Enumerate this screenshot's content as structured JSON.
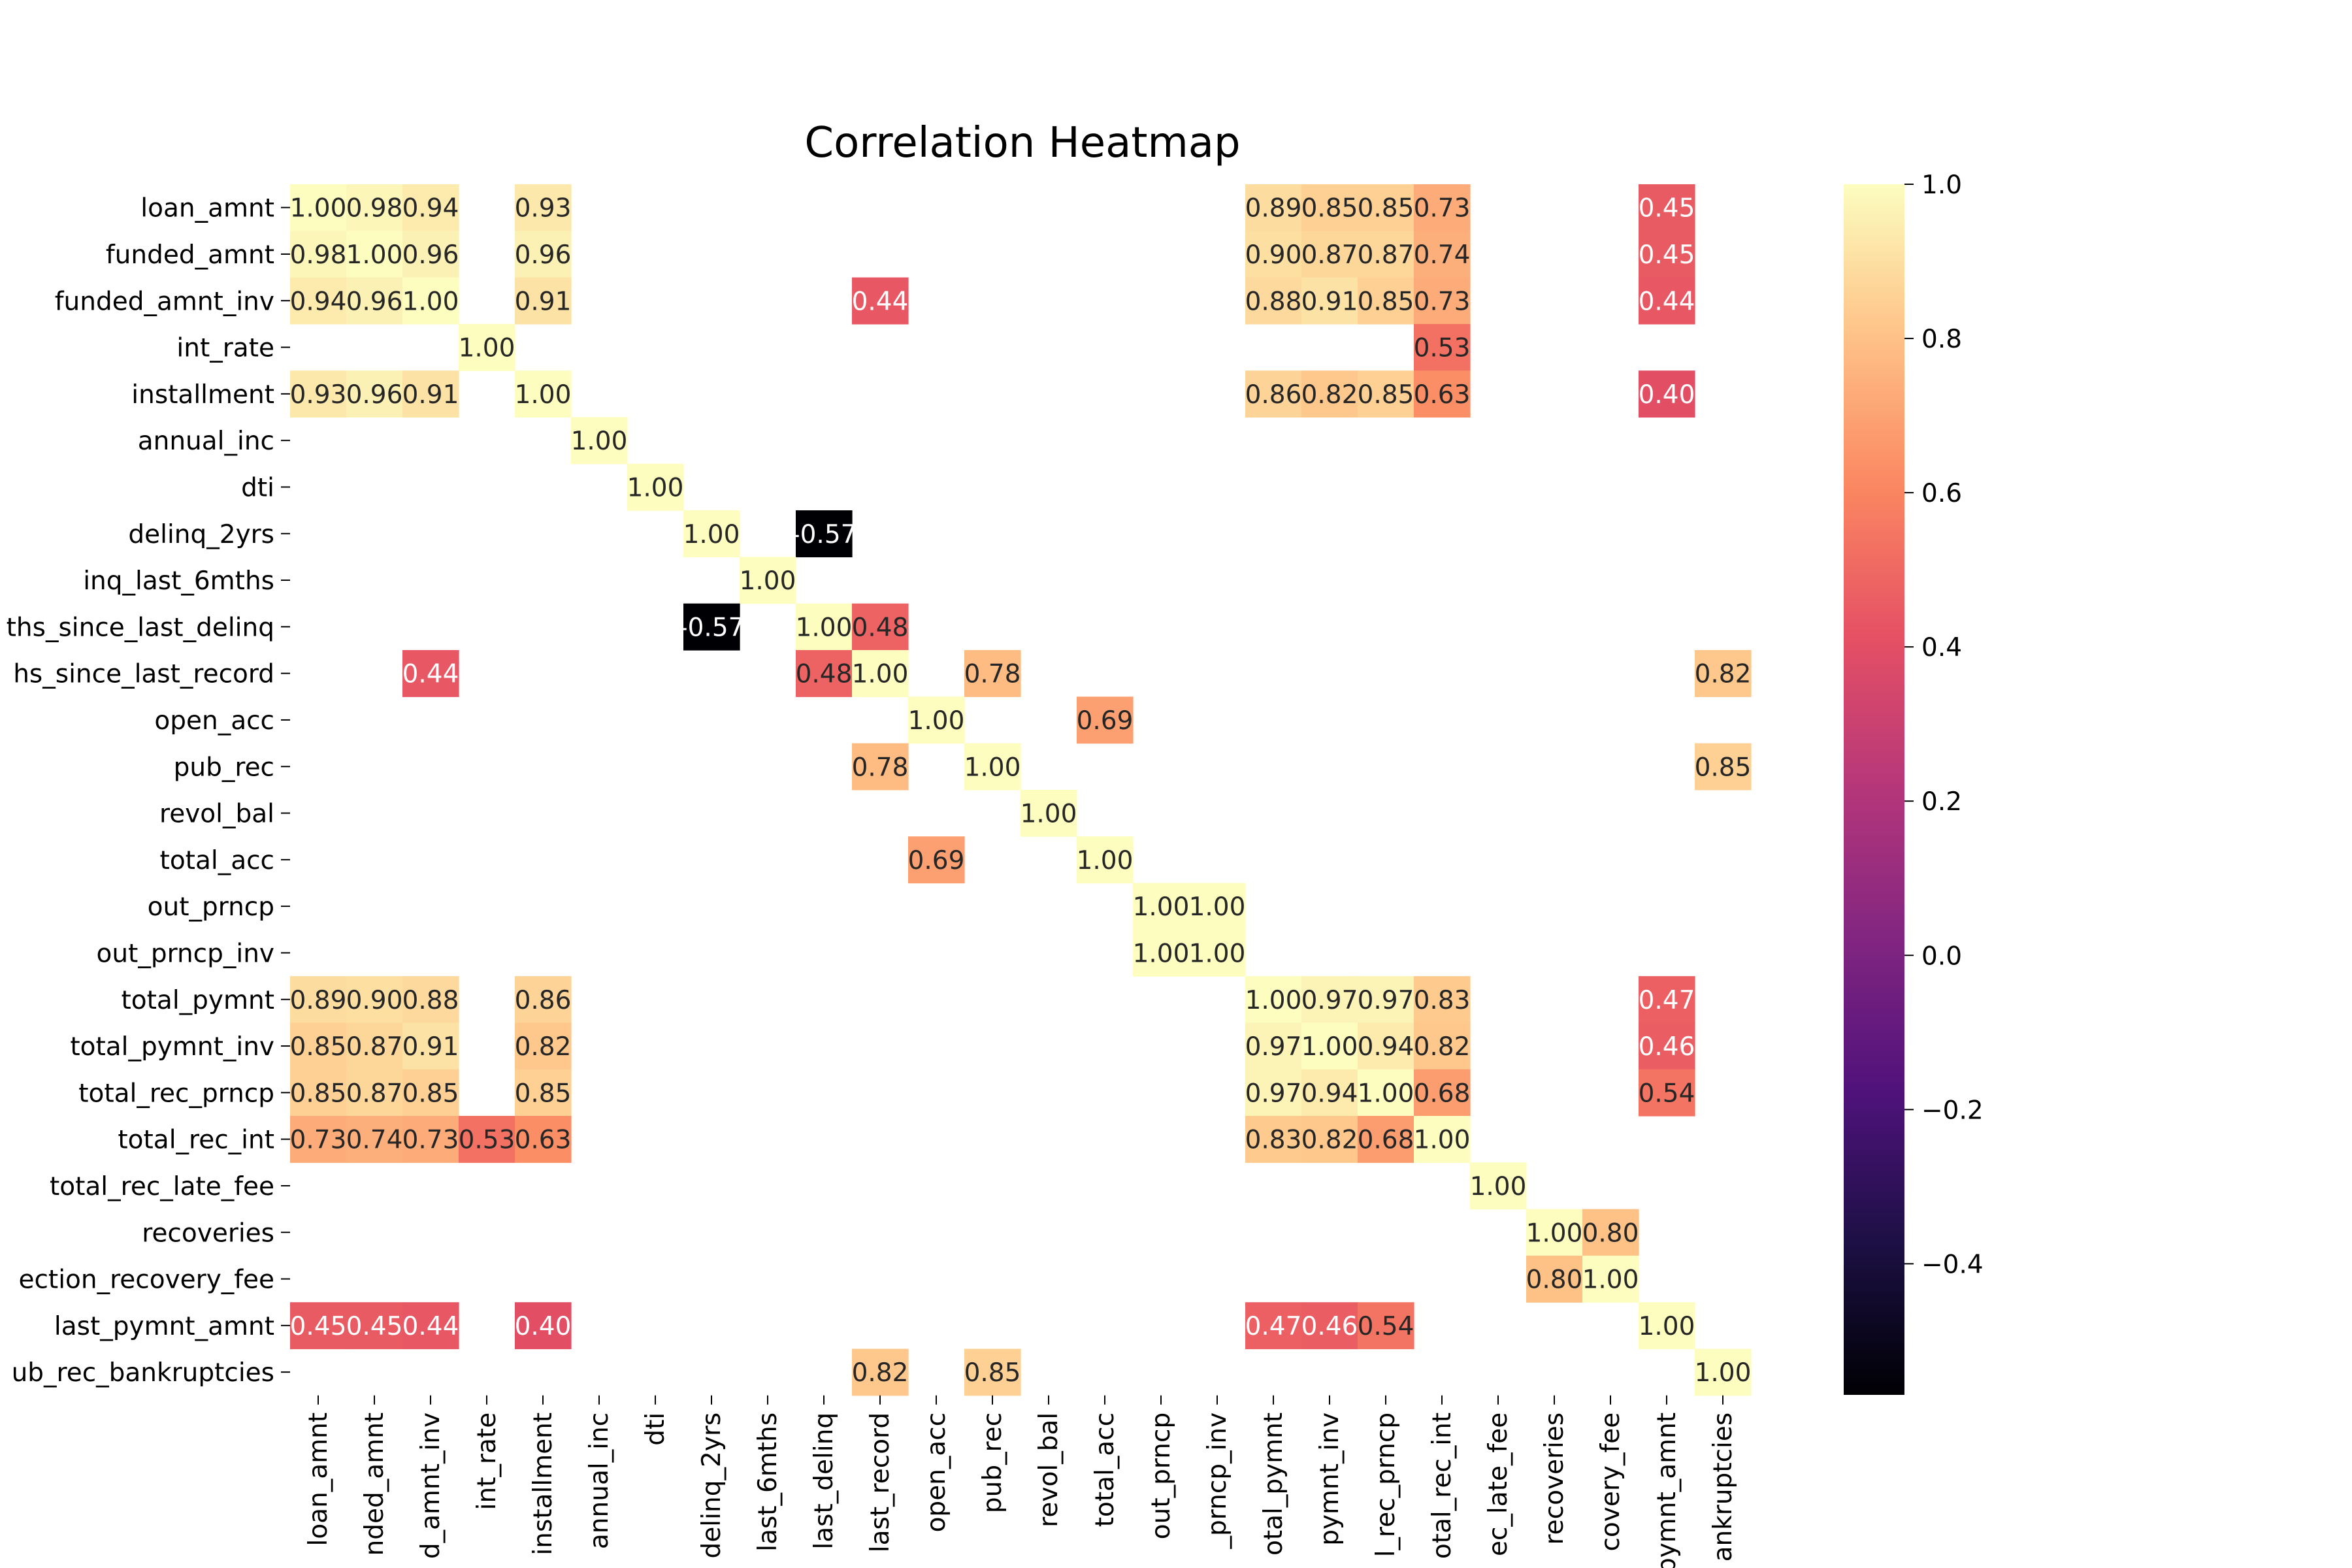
{
  "chart_data": {
    "type": "heatmap",
    "title": "Correlation Heatmap",
    "xlabel": "",
    "ylabel": "",
    "labels": [
      "loan_amnt",
      "funded_amnt",
      "funded_amnt_inv",
      "int_rate",
      "installment",
      "annual_inc",
      "dti",
      "delinq_2yrs",
      "inq_last_6mths",
      "mths_since_last_delinq",
      "mths_since_last_record",
      "open_acc",
      "pub_rec",
      "revol_bal",
      "total_acc",
      "out_prncp",
      "out_prncp_inv",
      "total_pymnt",
      "total_pymnt_inv",
      "total_rec_prncp",
      "total_rec_int",
      "total_rec_late_fee",
      "recoveries",
      "collection_recovery_fee",
      "last_pymnt_amnt",
      "pub_rec_bankruptcies"
    ],
    "y_tick_labels": [
      "loan_amnt",
      "funded_amnt",
      "funded_amnt_inv",
      "int_rate",
      "installment",
      "annual_inc",
      "dti",
      "delinq_2yrs",
      "inq_last_6mths",
      "ths_since_last_delinq",
      "hs_since_last_record",
      "open_acc",
      "pub_rec",
      "revol_bal",
      "total_acc",
      "out_prncp",
      "out_prncp_inv",
      "total_pymnt",
      "total_pymnt_inv",
      "total_rec_prncp",
      "total_rec_int",
      "total_rec_late_fee",
      "recoveries",
      "ection_recovery_fee",
      "last_pymnt_amnt",
      "ub_rec_bankruptcies"
    ],
    "x_tick_labels": [
      "loan_amnt",
      "nded_amnt",
      "d_amnt_inv",
      "int_rate",
      "installment",
      "annual_inc",
      "dti",
      "delinq_2yrs",
      "last_6mths",
      "last_delinq",
      "last_record",
      "open_acc",
      "pub_rec",
      "revol_bal",
      "total_acc",
      "out_prncp",
      "_prncp_inv",
      "otal_pymnt",
      "pymnt_inv",
      "l_rec_prncp",
      "otal_rec_int",
      "ec_late_fee",
      "recoveries",
      "covery_fee",
      "pymnt_amnt",
      "ankruptcies"
    ],
    "cells": [
      [
        0,
        0,
        1.0
      ],
      [
        0,
        1,
        0.98
      ],
      [
        0,
        2,
        0.94
      ],
      [
        0,
        4,
        0.93
      ],
      [
        0,
        17,
        0.89
      ],
      [
        0,
        18,
        0.85
      ],
      [
        0,
        19,
        0.85
      ],
      [
        0,
        20,
        0.73
      ],
      [
        0,
        24,
        0.45
      ],
      [
        1,
        0,
        0.98
      ],
      [
        1,
        1,
        1.0
      ],
      [
        1,
        2,
        0.96
      ],
      [
        1,
        4,
        0.96
      ],
      [
        1,
        17,
        0.9
      ],
      [
        1,
        18,
        0.87
      ],
      [
        1,
        19,
        0.87
      ],
      [
        1,
        20,
        0.74
      ],
      [
        1,
        24,
        0.45
      ],
      [
        2,
        0,
        0.94
      ],
      [
        2,
        1,
        0.96
      ],
      [
        2,
        2,
        1.0
      ],
      [
        2,
        4,
        0.91
      ],
      [
        2,
        10,
        0.44
      ],
      [
        2,
        17,
        0.88
      ],
      [
        2,
        18,
        0.91
      ],
      [
        2,
        19,
        0.85
      ],
      [
        2,
        20,
        0.73
      ],
      [
        2,
        24,
        0.44
      ],
      [
        3,
        3,
        1.0
      ],
      [
        3,
        20,
        0.53
      ],
      [
        4,
        0,
        0.93
      ],
      [
        4,
        1,
        0.96
      ],
      [
        4,
        2,
        0.91
      ],
      [
        4,
        4,
        1.0
      ],
      [
        4,
        17,
        0.86
      ],
      [
        4,
        18,
        0.82
      ],
      [
        4,
        19,
        0.85
      ],
      [
        4,
        20,
        0.63
      ],
      [
        4,
        24,
        0.4
      ],
      [
        5,
        5,
        1.0
      ],
      [
        6,
        6,
        1.0
      ],
      [
        7,
        7,
        1.0
      ],
      [
        7,
        9,
        -0.57
      ],
      [
        8,
        8,
        1.0
      ],
      [
        9,
        7,
        -0.57
      ],
      [
        9,
        9,
        1.0
      ],
      [
        9,
        10,
        0.48
      ],
      [
        10,
        2,
        0.44
      ],
      [
        10,
        9,
        0.48
      ],
      [
        10,
        10,
        1.0
      ],
      [
        10,
        12,
        0.78
      ],
      [
        10,
        25,
        0.82
      ],
      [
        11,
        11,
        1.0
      ],
      [
        11,
        14,
        0.69
      ],
      [
        12,
        10,
        0.78
      ],
      [
        12,
        12,
        1.0
      ],
      [
        12,
        25,
        0.85
      ],
      [
        13,
        13,
        1.0
      ],
      [
        14,
        11,
        0.69
      ],
      [
        14,
        14,
        1.0
      ],
      [
        15,
        15,
        1.0
      ],
      [
        15,
        16,
        1.0
      ],
      [
        16,
        15,
        1.0
      ],
      [
        16,
        16,
        1.0
      ],
      [
        17,
        0,
        0.89
      ],
      [
        17,
        1,
        0.9
      ],
      [
        17,
        2,
        0.88
      ],
      [
        17,
        4,
        0.86
      ],
      [
        17,
        17,
        1.0
      ],
      [
        17,
        18,
        0.97
      ],
      [
        17,
        19,
        0.97
      ],
      [
        17,
        20,
        0.83
      ],
      [
        17,
        24,
        0.47
      ],
      [
        18,
        0,
        0.85
      ],
      [
        18,
        1,
        0.87
      ],
      [
        18,
        2,
        0.91
      ],
      [
        18,
        4,
        0.82
      ],
      [
        18,
        17,
        0.97
      ],
      [
        18,
        18,
        1.0
      ],
      [
        18,
        19,
        0.94
      ],
      [
        18,
        20,
        0.82
      ],
      [
        18,
        24,
        0.46
      ],
      [
        19,
        0,
        0.85
      ],
      [
        19,
        1,
        0.87
      ],
      [
        19,
        2,
        0.85
      ],
      [
        19,
        4,
        0.85
      ],
      [
        19,
        17,
        0.97
      ],
      [
        19,
        18,
        0.94
      ],
      [
        19,
        19,
        1.0
      ],
      [
        19,
        20,
        0.68
      ],
      [
        19,
        24,
        0.54
      ],
      [
        20,
        0,
        0.73
      ],
      [
        20,
        1,
        0.74
      ],
      [
        20,
        2,
        0.73
      ],
      [
        20,
        3,
        0.53
      ],
      [
        20,
        4,
        0.63
      ],
      [
        20,
        17,
        0.83
      ],
      [
        20,
        18,
        0.82
      ],
      [
        20,
        19,
        0.68
      ],
      [
        20,
        20,
        1.0
      ],
      [
        21,
        21,
        1.0
      ],
      [
        22,
        22,
        1.0
      ],
      [
        22,
        23,
        0.8
      ],
      [
        23,
        22,
        0.8
      ],
      [
        23,
        23,
        1.0
      ],
      [
        24,
        0,
        0.45
      ],
      [
        24,
        1,
        0.45
      ],
      [
        24,
        2,
        0.44
      ],
      [
        24,
        4,
        0.4
      ],
      [
        24,
        17,
        0.47
      ],
      [
        24,
        18,
        0.46
      ],
      [
        24,
        19,
        0.54
      ],
      [
        24,
        24,
        1.0
      ],
      [
        25,
        10,
        0.82
      ],
      [
        25,
        12,
        0.85
      ],
      [
        25,
        25,
        1.0
      ]
    ],
    "colorbar": {
      "min": -0.57,
      "max": 1.0,
      "ticks": [
        "1.0",
        "0.8",
        "0.6",
        "0.4",
        "0.2",
        "0.0",
        "−0.2",
        "−0.4"
      ],
      "tick_values": [
        1.0,
        0.8,
        0.6,
        0.4,
        0.2,
        0.0,
        -0.2,
        -0.4
      ]
    },
    "colormap": "magma",
    "grid": false,
    "legend": "colorbar-right"
  }
}
